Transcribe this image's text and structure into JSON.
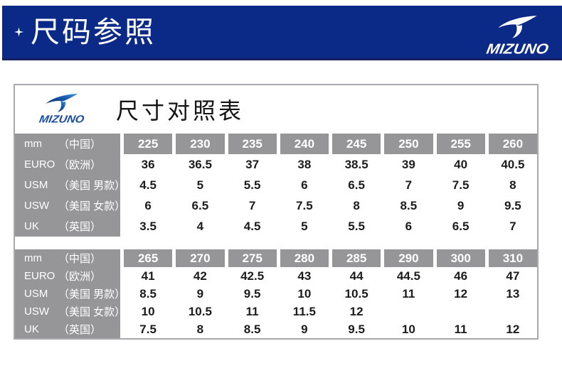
{
  "banner": {
    "title": "尺码参照",
    "brand": "MIZUNO"
  },
  "panel": {
    "title": "尺寸对照表",
    "brand": "MIZUNO"
  },
  "colors": {
    "banner_blue": "#0b2a87",
    "banner_edge_dark": "#132162",
    "cell_gray": "#969698",
    "panel_border": "#a9a9ad",
    "number_black": "#1c1c1c",
    "logo_gradient_dark": "#0a2a66",
    "logo_gradient_light": "#3f9fdd"
  },
  "tables": [
    {
      "name": "sizes-225-260",
      "rows": [
        {
          "code": "mm",
          "region": "（中国）",
          "header": true,
          "values": [
            "225",
            "230",
            "235",
            "240",
            "245",
            "250",
            "255",
            "260"
          ]
        },
        {
          "code": "EURO",
          "region": "（欧洲）",
          "header": false,
          "values": [
            "36",
            "36.5",
            "37",
            "38",
            "38.5",
            "39",
            "40",
            "40.5"
          ]
        },
        {
          "code": "USM",
          "region": "（美国 男款）",
          "header": false,
          "values": [
            "4.5",
            "5",
            "5.5",
            "6",
            "6.5",
            "7",
            "7.5",
            "8"
          ]
        },
        {
          "code": "USW",
          "region": "（美国 女款）",
          "header": false,
          "values": [
            "6",
            "6.5",
            "7",
            "7.5",
            "8",
            "8.5",
            "9",
            "9.5"
          ]
        },
        {
          "code": "UK",
          "region": "（英国）",
          "header": false,
          "values": [
            "3.5",
            "4",
            "4.5",
            "5",
            "5.5",
            "6",
            "6.5",
            "7"
          ]
        }
      ]
    },
    {
      "name": "sizes-265-310",
      "rows": [
        {
          "code": "mm",
          "region": "（中国）",
          "header": true,
          "values": [
            "265",
            "270",
            "275",
            "280",
            "285",
            "290",
            "300",
            "310"
          ]
        },
        {
          "code": "EURO",
          "region": "（欧洲）",
          "header": false,
          "values": [
            "41",
            "42",
            "42.5",
            "43",
            "44",
            "44.5",
            "46",
            "47"
          ]
        },
        {
          "code": "USM",
          "region": "（美国 男款）",
          "header": false,
          "values": [
            "8.5",
            "9",
            "9.5",
            "10",
            "10.5",
            "11",
            "12",
            "13"
          ]
        },
        {
          "code": "USW",
          "region": "（美国 女款）",
          "header": false,
          "values": [
            "10",
            "10.5",
            "11",
            "11.5",
            "12",
            "",
            "",
            ""
          ]
        },
        {
          "code": "UK",
          "region": "（英国）",
          "header": false,
          "values": [
            "7.5",
            "8",
            "8.5",
            "9",
            "9.5",
            "10",
            "11",
            "12"
          ]
        }
      ]
    }
  ]
}
